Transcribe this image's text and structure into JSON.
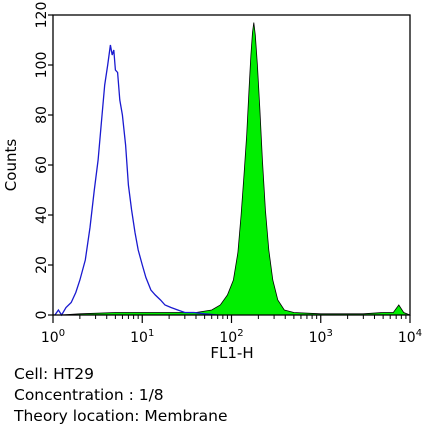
{
  "chart_data": {
    "type": "area",
    "xlabel": "FL1-H",
    "ylabel": "Counts",
    "x_scale": "log",
    "xlim": [
      1,
      10000
    ],
    "ylim": [
      0,
      120
    ],
    "grid": false,
    "x_ticks": [
      {
        "value": 1,
        "base": "10",
        "exp": "0"
      },
      {
        "value": 10,
        "base": "10",
        "exp": "1"
      },
      {
        "value": 100,
        "base": "10",
        "exp": "2"
      },
      {
        "value": 1000,
        "base": "10",
        "exp": "3"
      },
      {
        "value": 10000,
        "base": "10",
        "exp": "4"
      }
    ],
    "y_ticks": [
      0,
      20,
      40,
      60,
      80,
      100,
      120
    ],
    "series": [
      {
        "style": "outline",
        "color": "#1a1ad0",
        "points": [
          [
            1.05,
            0
          ],
          [
            1.15,
            2
          ],
          [
            1.25,
            0
          ],
          [
            1.4,
            3
          ],
          [
            1.6,
            5
          ],
          [
            1.8,
            9
          ],
          [
            2.0,
            14
          ],
          [
            2.3,
            22
          ],
          [
            2.6,
            35
          ],
          [
            2.9,
            50
          ],
          [
            3.2,
            62
          ],
          [
            3.5,
            78
          ],
          [
            3.8,
            92
          ],
          [
            4.1,
            100
          ],
          [
            4.4,
            108
          ],
          [
            4.6,
            104
          ],
          [
            4.8,
            106
          ],
          [
            5.0,
            98
          ],
          [
            5.3,
            97
          ],
          [
            5.6,
            86
          ],
          [
            6.0,
            80
          ],
          [
            6.5,
            68
          ],
          [
            7.0,
            52
          ],
          [
            7.6,
            42
          ],
          [
            8.3,
            33
          ],
          [
            9.0,
            26
          ],
          [
            10,
            20
          ],
          [
            11,
            15
          ],
          [
            12.5,
            10
          ],
          [
            14,
            8
          ],
          [
            16,
            6
          ],
          [
            18,
            4
          ],
          [
            21,
            3
          ],
          [
            25,
            2
          ],
          [
            30,
            1
          ],
          [
            38,
            1
          ],
          [
            50,
            0.5
          ],
          [
            70,
            0
          ]
        ]
      },
      {
        "style": "filled",
        "color": "#00ee00",
        "points": [
          [
            1.2,
            0
          ],
          [
            2,
            0.5
          ],
          [
            5,
            1
          ],
          [
            10,
            1
          ],
          [
            20,
            1
          ],
          [
            40,
            1
          ],
          [
            60,
            2
          ],
          [
            75,
            4
          ],
          [
            90,
            8
          ],
          [
            105,
            14
          ],
          [
            118,
            25
          ],
          [
            128,
            40
          ],
          [
            138,
            56
          ],
          [
            148,
            72
          ],
          [
            157,
            90
          ],
          [
            165,
            104
          ],
          [
            172,
            113
          ],
          [
            178,
            117
          ],
          [
            185,
            112
          ],
          [
            195,
            100
          ],
          [
            208,
            82
          ],
          [
            222,
            62
          ],
          [
            240,
            42
          ],
          [
            262,
            26
          ],
          [
            290,
            14
          ],
          [
            330,
            6
          ],
          [
            390,
            2
          ],
          [
            500,
            1
          ],
          [
            1000,
            0.5
          ],
          [
            3000,
            0.5
          ],
          [
            5000,
            1
          ],
          [
            6500,
            1
          ],
          [
            7500,
            4
          ],
          [
            8500,
            1
          ],
          [
            10000,
            0
          ]
        ]
      }
    ]
  },
  "caption": {
    "cell": "Cell: HT29",
    "concentration": "Concentration : 1/8",
    "location": "Theory location: Membrane"
  }
}
